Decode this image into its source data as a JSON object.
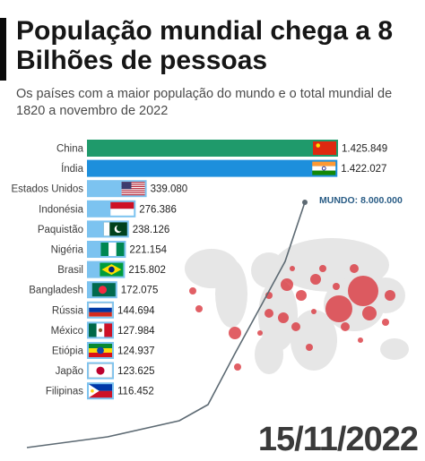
{
  "header": {
    "title": "População mundial chega a 8 Bilhões de pessoas",
    "subtitle": "Os países com a maior população do mundo e o total mundial de 1820 a novembro de 2022"
  },
  "date": "15/11/2022",
  "world_label": "MUNDO: 8.000.000",
  "chart_data": {
    "type": "bar",
    "orientation": "horizontal",
    "categories": [
      "China",
      "Índia",
      "Estados Unidos",
      "Indonésia",
      "Paquistão",
      "Nigéria",
      "Brasil",
      "Bangladesh",
      "Rússia",
      "México",
      "Etiópia",
      "Japão",
      "Filipinas"
    ],
    "values": [
      1425849,
      1422027,
      339080,
      276386,
      238126,
      221154,
      215802,
      172075,
      144694,
      127984,
      124937,
      123625,
      116452
    ],
    "value_labels": [
      "1.425.849",
      "1.422.027",
      "339.080",
      "276.386",
      "238.126",
      "221.154",
      "215.802",
      "172.075",
      "144.694",
      "127.984",
      "124.937",
      "123.625",
      "116.452"
    ],
    "bar_colors": [
      "#1f9a6b",
      "#1d8fdc",
      "#7cc3f0",
      "#7cc3f0",
      "#7cc3f0",
      "#7cc3f0",
      "#7cc3f0",
      "#7cc3f0",
      "#7cc3f0",
      "#7cc3f0",
      "#7cc3f0",
      "#7cc3f0",
      "#7cc3f0"
    ],
    "flags": [
      "china-flag-icon",
      "india-flag-icon",
      "usa-flag-icon",
      "indonesia-flag-icon",
      "pakistan-flag-icon",
      "nigeria-flag-icon",
      "brazil-flag-icon",
      "bangladesh-flag-icon",
      "russia-flag-icon",
      "mexico-flag-icon",
      "ethiopia-flag-icon",
      "japan-flag-icon",
      "philippines-flag-icon"
    ]
  },
  "colors": {
    "line": "#5d6a73",
    "map": "#e6e6e6",
    "bubble": "#d9323a"
  }
}
